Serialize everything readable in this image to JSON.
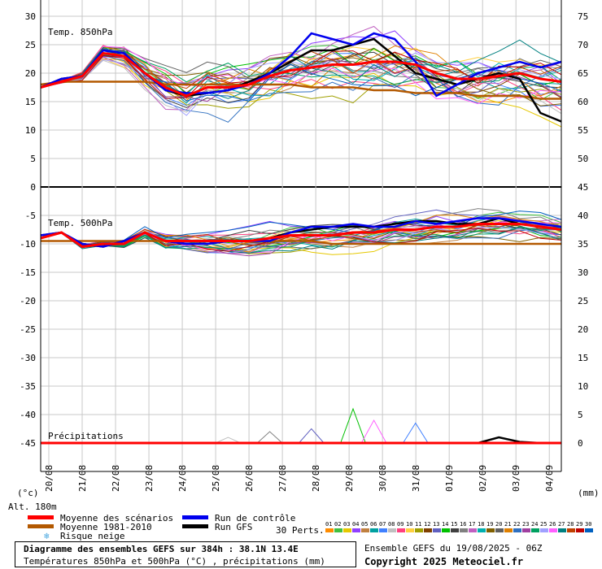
{
  "chart_data": {
    "type": "line",
    "title": "Diagramme des ensembles GEFS sur 384h : 38.1N 13.4E",
    "subtitle": "Températures 850hPa et 500hPa (°C) , précipitations (mm)",
    "x_labels": [
      "20/08",
      "21/08",
      "22/08",
      "23/08",
      "24/08",
      "25/08",
      "26/08",
      "27/08",
      "28/08",
      "29/08",
      "30/08",
      "31/08",
      "01/09",
      "02/09",
      "03/09",
      "04/09"
    ],
    "left_axis": {
      "label": "(°c)",
      "ticks": [
        30,
        25,
        20,
        15,
        10,
        5,
        0,
        -5,
        -10,
        -15,
        -20,
        -25,
        -30,
        -35,
        -40,
        -45
      ],
      "range": [
        -50,
        30
      ]
    },
    "right_axis": {
      "label": "(mm)",
      "ticks": [
        75,
        70,
        65,
        60,
        55,
        50,
        45,
        40,
        35,
        30,
        25,
        20,
        15,
        10,
        5,
        0
      ],
      "range": [
        -5,
        75
      ]
    },
    "altitude": "Alt. 180m",
    "panels": [
      {
        "label": "Temp. 850hPa"
      },
      {
        "label": "Temp. 500hPa"
      },
      {
        "label": "Précipitations"
      }
    ],
    "series": [
      {
        "name": "Moyenne des scénarios",
        "color": "#ff0000",
        "t850": [
          17.5,
          18.5,
          19.5,
          23.5,
          23,
          20,
          17.5,
          16,
          17.5,
          17.5,
          18,
          19.5,
          20.5,
          21,
          21.5,
          21.5,
          22,
          22,
          21.5,
          20,
          19,
          19,
          19.5,
          20,
          19,
          18.5
        ],
        "t500": [
          -9,
          -8,
          -10.5,
          -10,
          -10,
          -8,
          -9.5,
          -9.5,
          -9.5,
          -9.5,
          -9.5,
          -9,
          -8.5,
          -8.5,
          -8.5,
          -8,
          -8,
          -7.5,
          -7.5,
          -7,
          -7,
          -6.5,
          -6.5,
          -6.5,
          -7,
          -7.5
        ],
        "precip": [
          0,
          0,
          0,
          0,
          0,
          0,
          0,
          0,
          0,
          0,
          0,
          0,
          0,
          0,
          0,
          0,
          0,
          0,
          0,
          0,
          0,
          0,
          0,
          0,
          0,
          0
        ]
      },
      {
        "name": "Moyenne 1981-2010",
        "color": "#b35900",
        "t850": [
          18,
          18.5,
          18.5,
          18.5,
          18.5,
          18.5,
          18,
          18,
          18,
          18,
          18,
          18,
          18,
          17.5,
          17.5,
          17.5,
          17,
          17,
          16.5,
          16.5,
          16.5,
          16,
          16,
          16,
          15.5,
          15.5
        ],
        "t500": [
          -9.5,
          -9.5,
          -9.5,
          -9.5,
          -9.5,
          -9.5,
          -9.5,
          -9.5,
          -9.5,
          -9.5,
          -9.5,
          -9.5,
          -9.5,
          -9.5,
          -10,
          -10,
          -10,
          -10,
          -10,
          -10,
          -10,
          -10,
          -10,
          -10,
          -10,
          -10
        ]
      },
      {
        "name": "Run de contrôle",
        "color": "#0000ee",
        "t850": [
          17.5,
          19,
          19.5,
          24,
          23.5,
          20,
          17,
          16.5,
          16.5,
          17,
          18,
          20,
          23,
          27,
          26,
          25,
          27,
          26,
          22,
          16,
          18,
          20,
          21,
          22,
          21,
          22
        ],
        "t500": [
          -8.5,
          -8,
          -10,
          -10.5,
          -9.5,
          -8,
          -9.5,
          -10,
          -10,
          -9.5,
          -9.5,
          -9.5,
          -8,
          -7,
          -7,
          -6.5,
          -7,
          -7,
          -6,
          -6.5,
          -6,
          -5.5,
          -5.5,
          -6,
          -6.5,
          -7
        ],
        "precip": [
          0,
          0,
          0,
          0,
          0,
          0,
          0,
          0,
          0,
          0,
          0,
          0,
          0,
          0,
          0,
          0,
          0,
          0,
          0,
          0,
          0,
          0,
          0,
          0,
          0,
          0
        ]
      },
      {
        "name": "Run GFS",
        "color": "#000000",
        "t850": [
          17.5,
          19,
          19.5,
          24,
          23.5,
          20,
          17,
          16,
          16.5,
          17,
          18.5,
          20,
          22,
          24,
          24,
          25,
          26,
          23,
          20,
          19,
          18,
          19,
          20,
          19,
          13,
          11.5
        ],
        "t500": [
          -8.5,
          -8,
          -10,
          -10.5,
          -9.5,
          -8,
          -9.5,
          -10,
          -10,
          -9.5,
          -9.5,
          -9,
          -8,
          -7.5,
          -7,
          -7,
          -7,
          -6.5,
          -6,
          -6,
          -6.5,
          -6.5,
          -5.5,
          -6.5,
          -7,
          -7.5
        ],
        "precip": [
          0,
          0,
          0,
          0,
          0,
          0,
          0,
          0,
          0,
          0,
          0,
          0,
          0,
          0,
          0,
          0,
          0,
          0,
          0,
          0,
          0,
          0,
          1,
          0.2,
          0,
          0
        ]
      }
    ]
  },
  "legend": {
    "mean": "Moyenne des scénarios",
    "climo": "Moyenne 1981-2010",
    "snow": "Risque neige",
    "control": "Run de contrôle",
    "gfs": "Run GFS",
    "perts_label": "30 Perts.",
    "perts": [
      "01",
      "02",
      "03",
      "04",
      "05",
      "06",
      "07",
      "08",
      "09",
      "10",
      "11",
      "12",
      "13",
      "14",
      "15",
      "16",
      "17",
      "18",
      "19",
      "20",
      "21",
      "22",
      "23",
      "24",
      "25",
      "26",
      "27",
      "28",
      "29",
      "30"
    ],
    "pert_colors": [
      "#ff8c00",
      "#40c040",
      "#e6c800",
      "#9040ff",
      "#c08040",
      "#00a0a0",
      "#4080ff",
      "#c0c0c0",
      "#ff4080",
      "#ffd040",
      "#a0a000",
      "#804000",
      "#6060c0",
      "#00c000",
      "#404040",
      "#808080",
      "#c060c0",
      "#00b0b0",
      "#806000",
      "#606060",
      "#e08000",
      "#3070c0",
      "#a040a0",
      "#00a060",
      "#a0a0ff",
      "#ff60ff",
      "#008080",
      "#c04000",
      "#c00000",
      "#0060c0"
    ]
  },
  "footer": {
    "title": "Diagramme des ensembles GEFS sur 384h : 38.1N 13.4E",
    "subtitle": "Températures 850hPa et 500hPa (°C) , précipitations (mm)",
    "run": "Ensemble GEFS du 19/08/2025 - 06Z",
    "copyright": "Copyright 2025 Meteociel.fr"
  }
}
